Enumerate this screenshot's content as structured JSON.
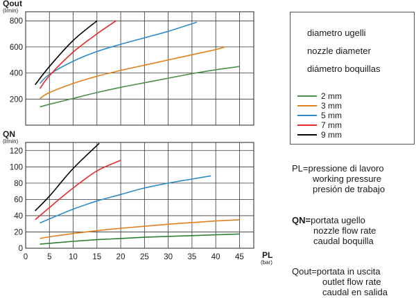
{
  "chart_data": [
    {
      "type": "line",
      "ylabel": "Qout",
      "yunit": "(l/min)",
      "xlim": [
        0,
        48
      ],
      "ylim": [
        0,
        870
      ],
      "yticks": [
        200,
        400,
        600,
        800
      ],
      "xgrid": [
        5,
        10,
        15,
        20,
        25,
        30,
        35,
        40,
        45
      ],
      "grid": true,
      "series": [
        {
          "name": "2 mm",
          "color": "#4a8f4a",
          "x": [
            3,
            5,
            10,
            15,
            20,
            25,
            30,
            35,
            40,
            45
          ],
          "y": [
            140,
            160,
            205,
            250,
            290,
            325,
            360,
            395,
            425,
            450
          ]
        },
        {
          "name": "3 mm",
          "color": "#e0811c",
          "x": [
            3,
            5,
            10,
            15,
            20,
            25,
            30,
            35,
            40,
            42
          ],
          "y": [
            205,
            250,
            320,
            375,
            420,
            460,
            500,
            540,
            580,
            600
          ]
        },
        {
          "name": "5 mm",
          "color": "#2e8bc7",
          "x": [
            3,
            5,
            10,
            15,
            20,
            25,
            30,
            36
          ],
          "y": [
            320,
            390,
            490,
            565,
            620,
            670,
            720,
            790
          ]
        },
        {
          "name": "7 mm",
          "color": "#e32b2b",
          "x": [
            3,
            5,
            10,
            15,
            19
          ],
          "y": [
            280,
            380,
            560,
            700,
            800
          ]
        },
        {
          "name": "9 mm",
          "color": "#000000",
          "x": [
            2,
            5,
            10,
            15
          ],
          "y": [
            310,
            450,
            650,
            800
          ]
        }
      ]
    },
    {
      "type": "line",
      "ylabel": "QN",
      "yunit": "(l/min)",
      "xlabel": "PL",
      "xunit": "(bar)",
      "xlim": [
        0,
        48
      ],
      "ylim": [
        0,
        130
      ],
      "yticks": [
        0,
        20,
        40,
        60,
        80,
        100,
        120
      ],
      "xticks": [
        0,
        5,
        10,
        15,
        20,
        25,
        30,
        35,
        40,
        45
      ],
      "grid": true,
      "series": [
        {
          "name": "2 mm",
          "color": "#2e7d32",
          "x": [
            3,
            5,
            10,
            15,
            20,
            25,
            30,
            35,
            40,
            45
          ],
          "y": [
            5,
            6,
            8.5,
            10.5,
            12,
            13.5,
            14.5,
            15.5,
            16.5,
            17.5
          ]
        },
        {
          "name": "3 mm",
          "color": "#e0811c",
          "x": [
            3,
            5,
            10,
            15,
            20,
            25,
            30,
            35,
            40,
            45
          ],
          "y": [
            12,
            14,
            18,
            21.5,
            24.5,
            27,
            29.5,
            31.5,
            33.5,
            35
          ]
        },
        {
          "name": "5 mm",
          "color": "#2e8bc7",
          "x": [
            3,
            5,
            10,
            15,
            20,
            25,
            30,
            35,
            39
          ],
          "y": [
            31,
            36,
            48,
            58,
            66,
            74,
            80,
            85,
            89
          ]
        },
        {
          "name": "7 mm",
          "color": "#e32b2b",
          "x": [
            2,
            5,
            10,
            15,
            20
          ],
          "y": [
            35,
            50,
            74,
            95,
            108
          ]
        },
        {
          "name": "9 mm",
          "color": "#000000",
          "x": [
            2,
            5,
            10,
            15.5
          ],
          "y": [
            46,
            64,
            98,
            129
          ]
        }
      ]
    }
  ],
  "legend": {
    "nozzle_title": [
      "diametro ugelli",
      "nozzle diameter",
      "diámetro boquillas"
    ],
    "entries": [
      {
        "label": "2 mm",
        "color": "#4a8f4a"
      },
      {
        "label": "3 mm",
        "color": "#e0811c"
      },
      {
        "label": "5 mm",
        "color": "#2e8bc7"
      },
      {
        "label": "7 mm",
        "color": "#e32b2b"
      },
      {
        "label": "9 mm",
        "color": "#000000"
      }
    ]
  },
  "notes": {
    "pl": {
      "key": "PL=",
      "lines": [
        "pressione di lavoro",
        "working pressure",
        "presión de trabajo"
      ]
    },
    "qn": {
      "key": "QN=",
      "lines": [
        "portata ugello",
        "nozzle flow rate",
        "caudal boquilla"
      ]
    },
    "qout": {
      "key": "Qout=",
      "lines": [
        "portata in uscita",
        "outlet flow rate",
        "caudal en salida"
      ]
    }
  }
}
